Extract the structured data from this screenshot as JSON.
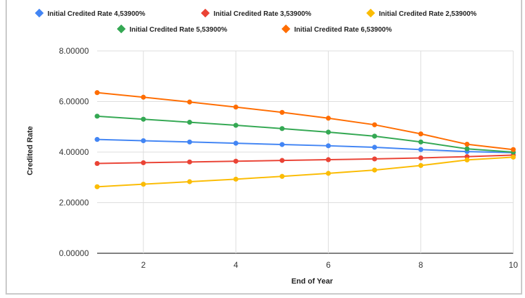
{
  "chart_data": {
    "type": "line",
    "xlabel": "End of Year",
    "ylabel": "Credited Rate",
    "x": [
      1,
      2,
      3,
      4,
      5,
      6,
      7,
      8,
      9,
      10
    ],
    "xlim": [
      1,
      10
    ],
    "ylim": [
      0,
      8
    ],
    "x_ticks": [
      "2",
      "4",
      "6",
      "8",
      "10"
    ],
    "y_ticks": [
      "0.00000",
      "2.00000",
      "4.00000",
      "6.00000",
      "8.00000"
    ],
    "grid": true,
    "legend": "top",
    "series": [
      {
        "name": "Initial Credited Rate 4,53900%",
        "color": "#4285f4",
        "values": [
          4.5,
          4.45,
          4.4,
          4.35,
          4.3,
          4.25,
          4.19,
          4.1,
          4.02,
          3.98
        ]
      },
      {
        "name": "Initial Credited Rate 3,53900%",
        "color": "#ea4335",
        "values": [
          3.55,
          3.58,
          3.61,
          3.64,
          3.67,
          3.7,
          3.73,
          3.77,
          3.82,
          3.88
        ]
      },
      {
        "name": "Initial Credited Rate 2,53900%",
        "color": "#fbbc04",
        "values": [
          2.63,
          2.73,
          2.83,
          2.93,
          3.04,
          3.16,
          3.29,
          3.47,
          3.69,
          3.8
        ]
      },
      {
        "name": "Initial Credited Rate 5,53900%",
        "color": "#34a853",
        "values": [
          5.42,
          5.3,
          5.18,
          5.06,
          4.93,
          4.79,
          4.63,
          4.4,
          4.13,
          4.0
        ]
      },
      {
        "name": "Initial Credited Rate 6,53900%",
        "color": "#ff6d01",
        "values": [
          6.35,
          6.17,
          5.98,
          5.78,
          5.57,
          5.34,
          5.08,
          4.72,
          4.31,
          4.1
        ]
      }
    ]
  }
}
